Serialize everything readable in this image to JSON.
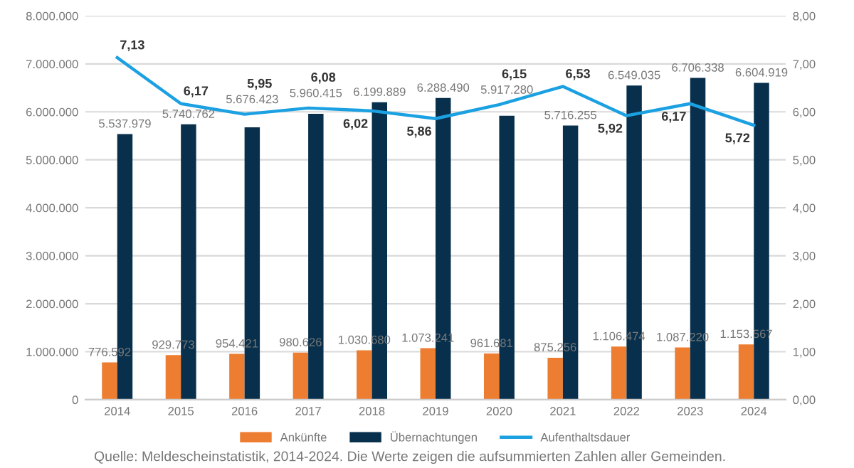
{
  "chart_data": {
    "type": "bar",
    "categories": [
      "2014",
      "2015",
      "2016",
      "2017",
      "2018",
      "2019",
      "2020",
      "2021",
      "2022",
      "2023",
      "2024"
    ],
    "series": [
      {
        "name": "Ankünfte",
        "color": "#ed7d31",
        "values": [
          776592,
          929773,
          954421,
          980626,
          1030680,
          1073241,
          961681,
          875256,
          1106474,
          1087220,
          1153567
        ],
        "value_labels": [
          "776.592",
          "929.773",
          "954.421",
          "980.626",
          "1.030.680",
          "1.073.241",
          "961.681",
          "875.256",
          "1.106.474",
          "1.087.220",
          "1.153.567"
        ]
      },
      {
        "name": "Übernachtungen",
        "color": "#08304d",
        "values": [
          5537979,
          5740762,
          5676423,
          5960415,
          6199889,
          6288490,
          5917280,
          5716255,
          6549035,
          6706338,
          6604919
        ],
        "value_labels": [
          "5.537.979",
          "5.740.762",
          "5.676.423",
          "5.960.415",
          "6.199.889",
          "6.288.490",
          "5.917.280",
          "5.716.255",
          "6.549.035",
          "6.706.338",
          "6.604.919"
        ]
      },
      {
        "name": "Aufenthaltsdauer",
        "type": "line",
        "axis": "y2",
        "color": "#1ba1e2",
        "values": [
          7.13,
          6.17,
          5.95,
          6.08,
          6.02,
          5.86,
          6.15,
          6.53,
          5.92,
          6.17,
          5.72
        ],
        "value_labels": [
          "7,13",
          "6,17",
          "5,95",
          "6,08",
          "6,02",
          "5,86",
          "6,15",
          "6,53",
          "5,92",
          "6,17",
          "5,72"
        ]
      }
    ],
    "ylim": [
      0,
      8000000
    ],
    "yticks": [
      {
        "value": 0,
        "label": "0"
      },
      {
        "value": 1000000,
        "label": "1.000.000"
      },
      {
        "value": 2000000,
        "label": "2.000.000"
      },
      {
        "value": 3000000,
        "label": "3.000.000"
      },
      {
        "value": 4000000,
        "label": "4.000.000"
      },
      {
        "value": 5000000,
        "label": "5.000.000"
      },
      {
        "value": 6000000,
        "label": "6.000.000"
      },
      {
        "value": 7000000,
        "label": "7.000.000"
      },
      {
        "value": 8000000,
        "label": "8.000.000"
      }
    ],
    "y2lim": [
      0,
      8
    ],
    "y2ticks": [
      {
        "value": 0,
        "label": "0,00"
      },
      {
        "value": 1,
        "label": "1,00"
      },
      {
        "value": 2,
        "label": "2,00"
      },
      {
        "value": 3,
        "label": "3,00"
      },
      {
        "value": 4,
        "label": "4,00"
      },
      {
        "value": 5,
        "label": "5,00"
      },
      {
        "value": 6,
        "label": "6,00"
      },
      {
        "value": 7,
        "label": "7,00"
      },
      {
        "value": 8,
        "label": "8,00"
      }
    ],
    "grid": "y",
    "legend": "bottom",
    "marker": "none",
    "line_style": "solid",
    "annotations": [
      "Quelle: Meldescheinstatistik, 2014-2024. Die Werte zeigen die aufsummierten Zahlen aller Gemeinden."
    ]
  }
}
